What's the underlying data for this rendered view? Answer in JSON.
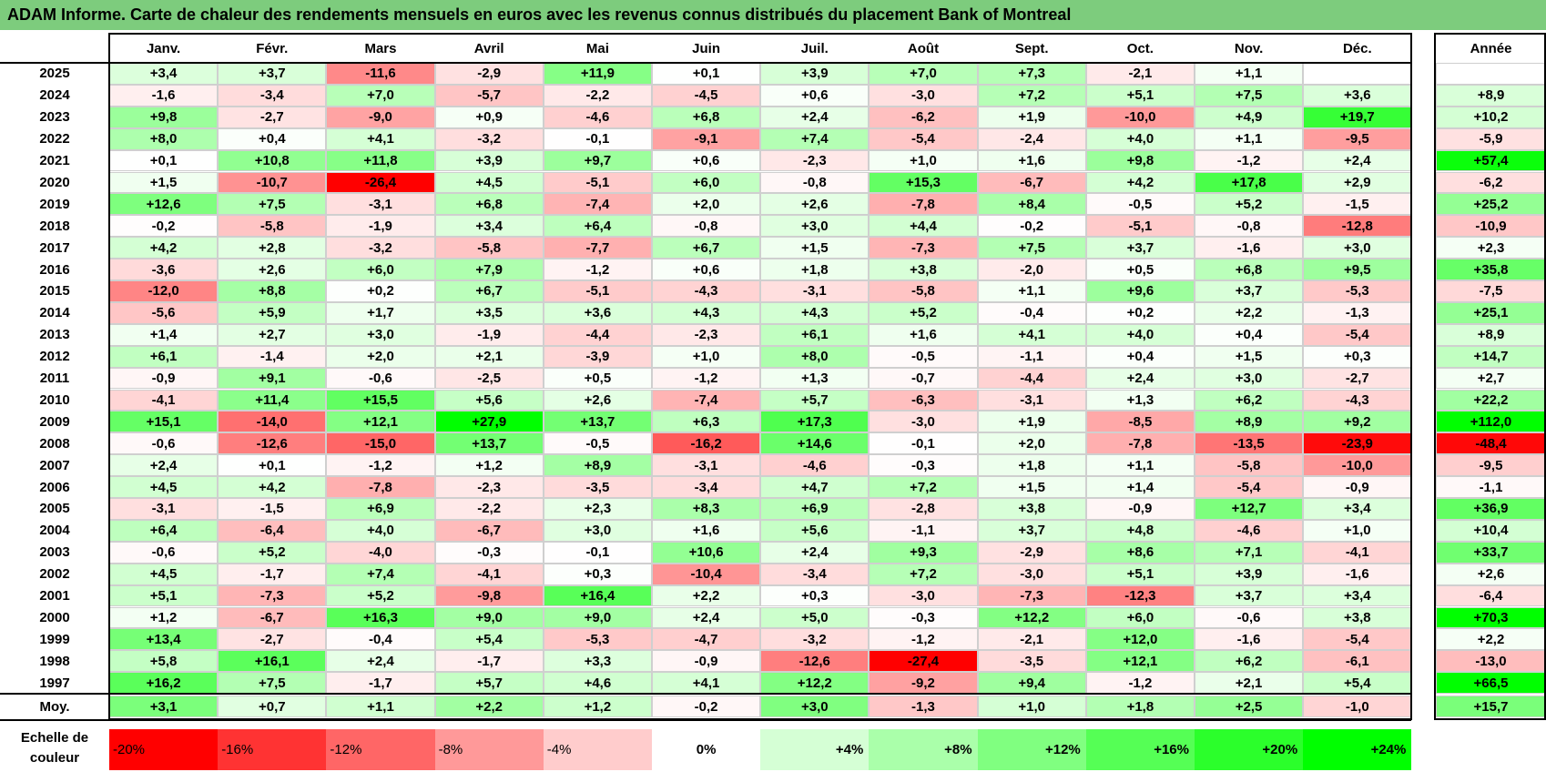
{
  "title": "ADAM Informe. Carte de chaleur des rendements mensuels en euros avec les revenus connus distribués du placement Bank of Montreal",
  "chart_data": {
    "type": "heatmap",
    "title": "ADAM Informe. Carte de chaleur des rendements mensuels en euros avec les revenus connus distribués du placement Bank of Montreal",
    "columns": [
      "Janv.",
      "Févr.",
      "Mars",
      "Avril",
      "Mai",
      "Juin",
      "Juil.",
      "Août",
      "Sept.",
      "Oct.",
      "Nov.",
      "Déc."
    ],
    "year_header": "Année",
    "rows": [
      {
        "year": "2025",
        "values": [
          "+3,4",
          "+3,7",
          "-11,6",
          "-2,9",
          "+11,9",
          "+0,1",
          "+3,9",
          "+7,0",
          "+7,3",
          "-2,1",
          "+1,1",
          ""
        ],
        "annual": ""
      },
      {
        "year": "2024",
        "values": [
          "-1,6",
          "-3,4",
          "+7,0",
          "-5,7",
          "-2,2",
          "-4,5",
          "+0,6",
          "-3,0",
          "+7,2",
          "+5,1",
          "+7,5",
          "+3,6"
        ],
        "annual": "+8,9"
      },
      {
        "year": "2023",
        "values": [
          "+9,8",
          "-2,7",
          "-9,0",
          "+0,9",
          "-4,6",
          "+6,8",
          "+2,4",
          "-6,2",
          "+1,9",
          "-10,0",
          "+4,9",
          "+19,7"
        ],
        "annual": "+10,2"
      },
      {
        "year": "2022",
        "values": [
          "+8,0",
          "+0,4",
          "+4,1",
          "-3,2",
          "-0,1",
          "-9,1",
          "+7,4",
          "-5,4",
          "-2,4",
          "+4,0",
          "+1,1",
          "-9,5"
        ],
        "annual": "-5,9"
      },
      {
        "year": "2021",
        "values": [
          "+0,1",
          "+10,8",
          "+11,8",
          "+3,9",
          "+9,7",
          "+0,6",
          "-2,3",
          "+1,0",
          "+1,6",
          "+9,8",
          "-1,2",
          "+2,4"
        ],
        "annual": "+57,4"
      },
      {
        "year": "2020",
        "values": [
          "+1,5",
          "-10,7",
          "-26,4",
          "+4,5",
          "-5,1",
          "+6,0",
          "-0,8",
          "+15,3",
          "-6,7",
          "+4,2",
          "+17,8",
          "+2,9"
        ],
        "annual": "-6,2"
      },
      {
        "year": "2019",
        "values": [
          "+12,6",
          "+7,5",
          "-3,1",
          "+6,8",
          "-7,4",
          "+2,0",
          "+2,6",
          "-7,8",
          "+8,4",
          "-0,5",
          "+5,2",
          "-1,5"
        ],
        "annual": "+25,2"
      },
      {
        "year": "2018",
        "values": [
          "-0,2",
          "-5,8",
          "-1,9",
          "+3,4",
          "+6,4",
          "-0,8",
          "+3,0",
          "+4,4",
          "-0,2",
          "-5,1",
          "-0,8",
          "-12,8"
        ],
        "annual": "-10,9"
      },
      {
        "year": "2017",
        "values": [
          "+4,2",
          "+2,8",
          "-3,2",
          "-5,8",
          "-7,7",
          "+6,7",
          "+1,5",
          "-7,3",
          "+7,5",
          "+3,7",
          "-1,6",
          "+3,0"
        ],
        "annual": "+2,3"
      },
      {
        "year": "2016",
        "values": [
          "-3,6",
          "+2,6",
          "+6,0",
          "+7,9",
          "-1,2",
          "+0,6",
          "+1,8",
          "+3,8",
          "-2,0",
          "+0,5",
          "+6,8",
          "+9,5"
        ],
        "annual": "+35,8"
      },
      {
        "year": "2015",
        "values": [
          "-12,0",
          "+8,8",
          "+0,2",
          "+6,7",
          "-5,1",
          "-4,3",
          "-3,1",
          "-5,8",
          "+1,1",
          "+9,6",
          "+3,7",
          "-5,3"
        ],
        "annual": "-7,5"
      },
      {
        "year": "2014",
        "values": [
          "-5,6",
          "+5,9",
          "+1,7",
          "+3,5",
          "+3,6",
          "+4,3",
          "+4,3",
          "+5,2",
          "-0,4",
          "+0,2",
          "+2,2",
          "-1,3"
        ],
        "annual": "+25,1"
      },
      {
        "year": "2013",
        "values": [
          "+1,4",
          "+2,7",
          "+3,0",
          "-1,9",
          "-4,4",
          "-2,3",
          "+6,1",
          "+1,6",
          "+4,1",
          "+4,0",
          "+0,4",
          "-5,4"
        ],
        "annual": "+8,9"
      },
      {
        "year": "2012",
        "values": [
          "+6,1",
          "-1,4",
          "+2,0",
          "+2,1",
          "-3,9",
          "+1,0",
          "+8,0",
          "-0,5",
          "-1,1",
          "+0,4",
          "+1,5",
          "+0,3"
        ],
        "annual": "+14,7"
      },
      {
        "year": "2011",
        "values": [
          "-0,9",
          "+9,1",
          "-0,6",
          "-2,5",
          "+0,5",
          "-1,2",
          "+1,3",
          "-0,7",
          "-4,4",
          "+2,4",
          "+3,0",
          "-2,7"
        ],
        "annual": "+2,7"
      },
      {
        "year": "2010",
        "values": [
          "-4,1",
          "+11,4",
          "+15,5",
          "+5,6",
          "+2,6",
          "-7,4",
          "+5,7",
          "-6,3",
          "-3,1",
          "+1,3",
          "+6,2",
          "-4,3"
        ],
        "annual": "+22,2"
      },
      {
        "year": "2009",
        "values": [
          "+15,1",
          "-14,0",
          "+12,1",
          "+27,9",
          "+13,7",
          "+6,3",
          "+17,3",
          "-3,0",
          "+1,9",
          "-8,5",
          "+8,9",
          "+9,2"
        ],
        "annual": "+112,0"
      },
      {
        "year": "2008",
        "values": [
          "-0,6",
          "-12,6",
          "-15,0",
          "+13,7",
          "-0,5",
          "-16,2",
          "+14,6",
          "-0,1",
          "+2,0",
          "-7,8",
          "-13,5",
          "-23,9"
        ],
        "annual": "-48,4"
      },
      {
        "year": "2007",
        "values": [
          "+2,4",
          "+0,1",
          "-1,2",
          "+1,2",
          "+8,9",
          "-3,1",
          "-4,6",
          "-0,3",
          "+1,8",
          "+1,1",
          "-5,8",
          "-10,0"
        ],
        "annual": "-9,5"
      },
      {
        "year": "2006",
        "values": [
          "+4,5",
          "+4,2",
          "-7,8",
          "-2,3",
          "-3,5",
          "-3,4",
          "+4,7",
          "+7,2",
          "+1,5",
          "+1,4",
          "-5,4",
          "-0,9"
        ],
        "annual": "-1,1"
      },
      {
        "year": "2005",
        "values": [
          "-3,1",
          "-1,5",
          "+6,9",
          "-2,2",
          "+2,3",
          "+8,3",
          "+6,9",
          "-2,8",
          "+3,8",
          "-0,9",
          "+12,7",
          "+3,4"
        ],
        "annual": "+36,9"
      },
      {
        "year": "2004",
        "values": [
          "+6,4",
          "-6,4",
          "+4,0",
          "-6,7",
          "+3,0",
          "+1,6",
          "+5,6",
          "-1,1",
          "+3,7",
          "+4,8",
          "-4,6",
          "+1,0"
        ],
        "annual": "+10,4"
      },
      {
        "year": "2003",
        "values": [
          "-0,6",
          "+5,2",
          "-4,0",
          "-0,3",
          "-0,1",
          "+10,6",
          "+2,4",
          "+9,3",
          "-2,9",
          "+8,6",
          "+7,1",
          "-4,1"
        ],
        "annual": "+33,7"
      },
      {
        "year": "2002",
        "values": [
          "+4,5",
          "-1,7",
          "+7,4",
          "-4,1",
          "+0,3",
          "-10,4",
          "-3,4",
          "+7,2",
          "-3,0",
          "+5,1",
          "+3,9",
          "-1,6"
        ],
        "annual": "+2,6"
      },
      {
        "year": "2001",
        "values": [
          "+5,1",
          "-7,3",
          "+5,2",
          "-9,8",
          "+16,4",
          "+2,2",
          "+0,3",
          "-3,0",
          "-7,3",
          "-12,3",
          "+3,7",
          "+3,4"
        ],
        "annual": "-6,4"
      },
      {
        "year": "2000",
        "values": [
          "+1,2",
          "-6,7",
          "+16,3",
          "+9,0",
          "+9,0",
          "+2,4",
          "+5,0",
          "-0,3",
          "+12,2",
          "+6,0",
          "-0,6",
          "+3,8"
        ],
        "annual": "+70,3"
      },
      {
        "year": "1999",
        "values": [
          "+13,4",
          "-2,7",
          "-0,4",
          "+5,4",
          "-5,3",
          "-4,7",
          "-3,2",
          "-1,2",
          "-2,1",
          "+12,0",
          "-1,6",
          "-5,4"
        ],
        "annual": "+2,2"
      },
      {
        "year": "1998",
        "values": [
          "+5,8",
          "+16,1",
          "+2,4",
          "-1,7",
          "+3,3",
          "-0,9",
          "-12,6",
          "-27,4",
          "-3,5",
          "+12,1",
          "+6,2",
          "-6,1"
        ],
        "annual": "-13,0"
      },
      {
        "year": "1997",
        "values": [
          "+16,2",
          "+7,5",
          "-1,7",
          "+5,7",
          "+4,6",
          "+4,1",
          "+12,2",
          "-9,2",
          "+9,4",
          "-1,2",
          "+2,1",
          "+5,4"
        ],
        "annual": "+66,5"
      }
    ],
    "average": {
      "label": "Moy.",
      "values": [
        "+3,1",
        "+0,7",
        "+1,1",
        "+2,2",
        "+1,2",
        "-0,2",
        "+3,0",
        "-1,3",
        "+1,0",
        "+1,8",
        "+2,5",
        "-1,0"
      ],
      "annual": "+15,7"
    },
    "legend": {
      "label": "Echelle de couleur",
      "steps": [
        "-20%",
        "-16%",
        "-12%",
        "-8%",
        "-4%",
        "0%",
        "+4%",
        "+8%",
        "+12%",
        "+16%",
        "+20%",
        "+24%"
      ],
      "values": [
        -20,
        -16,
        -12,
        -8,
        -4,
        0,
        4,
        8,
        12,
        16,
        20,
        24
      ]
    },
    "colors": {
      "negative_max": "#ff0000",
      "zero": "#ffffff",
      "positive_max": "#00ff00",
      "title_bar": "#7dcc7d"
    }
  }
}
